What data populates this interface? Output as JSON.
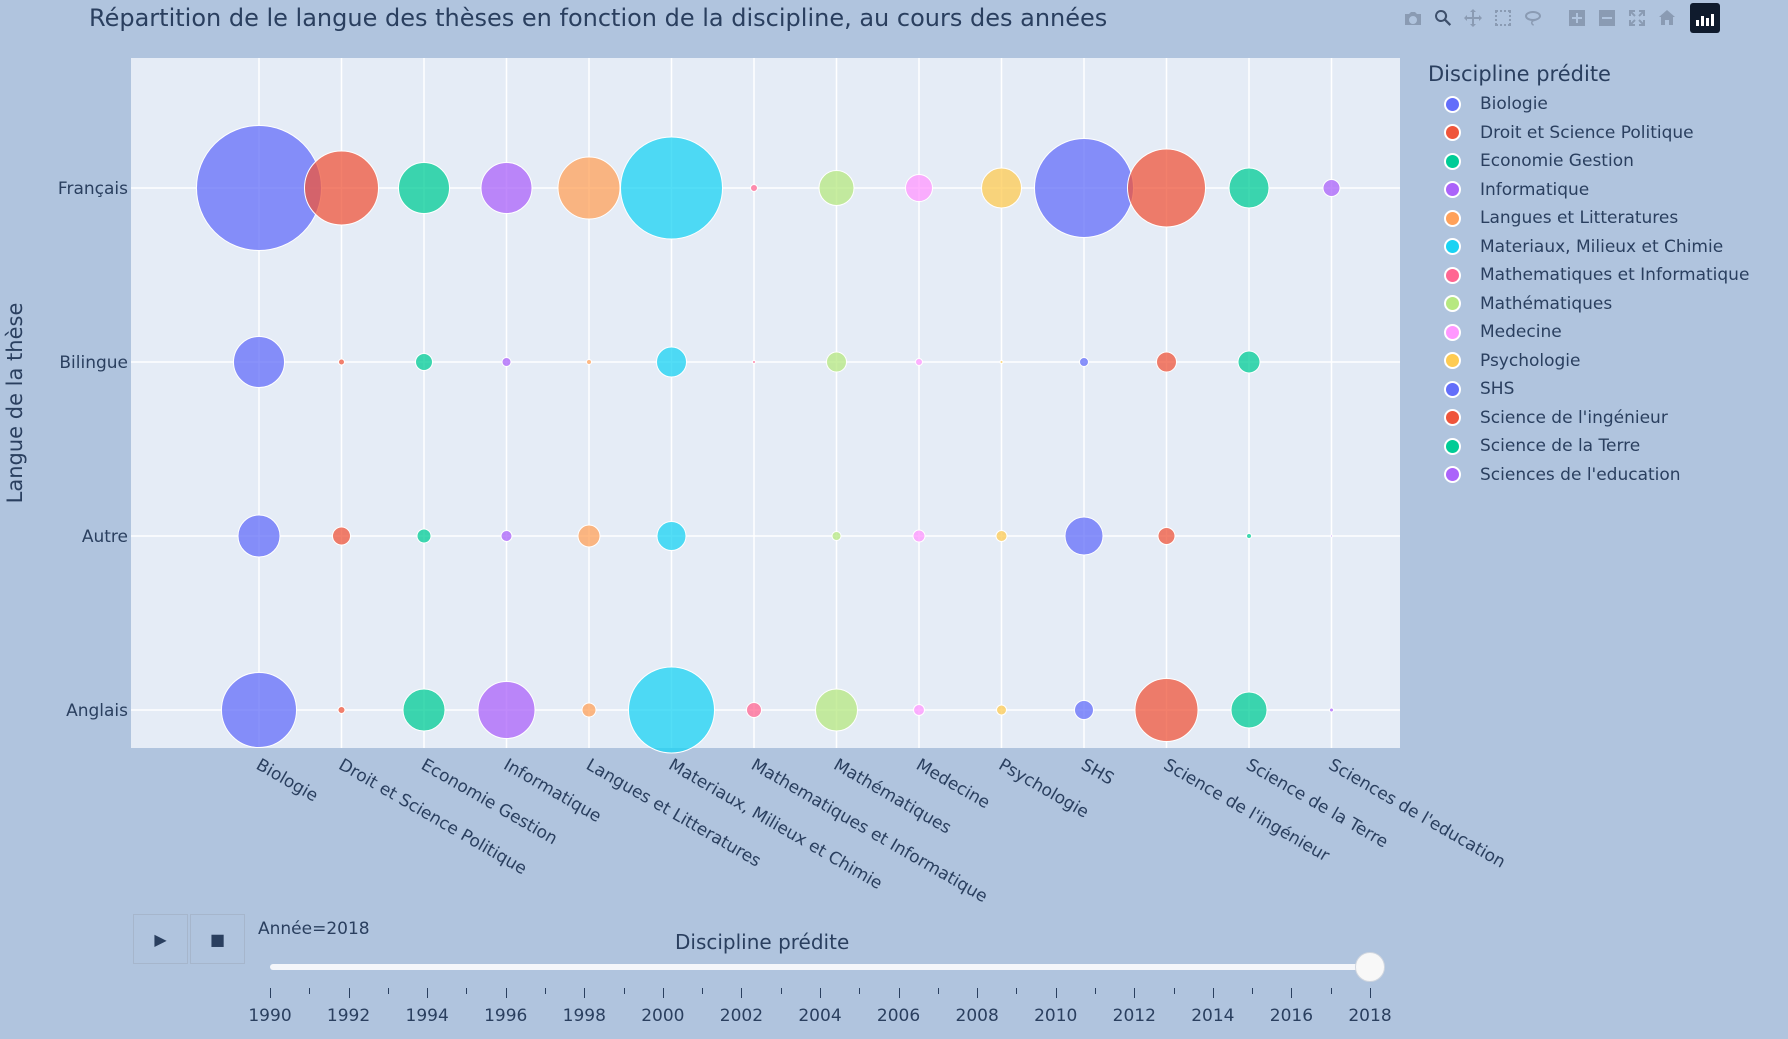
{
  "chart_data": {
    "type": "scatter",
    "title": "Répartition de le langue des thèses en fonction de la discipline, au cours des années",
    "ylabel": "Langue de la thèse",
    "xlabel": "",
    "categories": [
      "Biologie",
      "Droit et Science Politique",
      "Economie Gestion",
      "Informatique",
      "Langues et Litteratures",
      "Materiaux, Milieux et Chimie",
      "Mathematiques et Informatique",
      "Mathématiques",
      "Medecine",
      "Psychologie",
      "SHS",
      "Science de l'ingénieur",
      "Science de la Terre",
      "Sciences de l'education"
    ],
    "y_categories": [
      "Français",
      "Bilingue",
      "Autre",
      "Anglais"
    ],
    "legend_title": "Discipline prédite",
    "legend_position": "right",
    "grid": true,
    "series": [
      {
        "name": "Biologie",
        "color": "#636efa",
        "sizes": {
          "Français": 125,
          "Bilingue": 51,
          "Autre": 42,
          "Anglais": 75
        }
      },
      {
        "name": "Droit et Science Politique",
        "color": "#ef553b",
        "sizes": {
          "Français": 74,
          "Bilingue": 6,
          "Autre": 18,
          "Anglais": 7
        }
      },
      {
        "name": "Economie Gestion",
        "color": "#00cc96",
        "sizes": {
          "Français": 51,
          "Bilingue": 17,
          "Autre": 14,
          "Anglais": 42
        }
      },
      {
        "name": "Informatique",
        "color": "#ab63fa",
        "sizes": {
          "Français": 51,
          "Bilingue": 9,
          "Autre": 11,
          "Anglais": 57
        }
      },
      {
        "name": "Langues et Litteratures",
        "color": "#ffa15a",
        "sizes": {
          "Français": 62,
          "Bilingue": 5,
          "Autre": 22,
          "Anglais": 14
        }
      },
      {
        "name": "Materiaux, Milieux et Chimie",
        "color": "#19d3f3",
        "sizes": {
          "Français": 102,
          "Bilingue": 30,
          "Autre": 29,
          "Anglais": 86
        }
      },
      {
        "name": "Mathematiques et Informatique",
        "color": "#ff6692",
        "sizes": {
          "Français": 7,
          "Bilingue": 3,
          "Autre": 0,
          "Anglais": 15
        }
      },
      {
        "name": "Mathématiques",
        "color": "#b6e880",
        "sizes": {
          "Français": 35,
          "Bilingue": 20,
          "Autre": 9,
          "Anglais": 42
        }
      },
      {
        "name": "Medecine",
        "color": "#ff97ff",
        "sizes": {
          "Français": 27,
          "Bilingue": 7,
          "Autre": 12,
          "Anglais": 11
        }
      },
      {
        "name": "Psychologie",
        "color": "#fecb52",
        "sizes": {
          "Français": 40,
          "Bilingue": 3,
          "Autre": 11,
          "Anglais": 10
        }
      },
      {
        "name": "SHS",
        "color": "#636efa",
        "sizes": {
          "Français": 99,
          "Bilingue": 9,
          "Autre": 38,
          "Anglais": 19
        }
      },
      {
        "name": "Science de l'ingénieur",
        "color": "#ef553b",
        "sizes": {
          "Français": 78,
          "Bilingue": 20,
          "Autre": 17,
          "Anglais": 63
        }
      },
      {
        "name": "Science de la Terre",
        "color": "#00cc96",
        "sizes": {
          "Français": 40,
          "Bilingue": 22,
          "Autre": 5,
          "Anglais": 36
        }
      },
      {
        "name": "Sciences de l'education",
        "color": "#ab63fa",
        "sizes": {
          "Français": 17,
          "Bilingue": 0,
          "Autre": 2,
          "Anglais": 4
        }
      }
    ]
  },
  "modebar": {
    "buttons": [
      "camera-icon",
      "zoom-icon",
      "pan-icon",
      "box-select-icon",
      "lasso-icon",
      "zoom-in-icon",
      "zoom-out-icon",
      "autoscale-icon",
      "home-icon",
      "plotly-logo-icon"
    ]
  },
  "animation": {
    "play_glyph": "▶",
    "stop_glyph": "■",
    "current_label": "Année=2018",
    "slider_title": "Discipline prédite",
    "years": [
      1990,
      1991,
      1992,
      1993,
      1994,
      1995,
      1996,
      1997,
      1998,
      1999,
      2000,
      2001,
      2002,
      2003,
      2004,
      2005,
      2006,
      2007,
      2008,
      2009,
      2010,
      2011,
      2012,
      2013,
      2014,
      2015,
      2016,
      2017,
      2018
    ],
    "labeled_years": [
      "1990",
      "1992",
      "1994",
      "1996",
      "1998",
      "2000",
      "2002",
      "2004",
      "2006",
      "2008",
      "2010",
      "2012",
      "2014",
      "2016",
      "2018"
    ],
    "current_year": 2018
  }
}
